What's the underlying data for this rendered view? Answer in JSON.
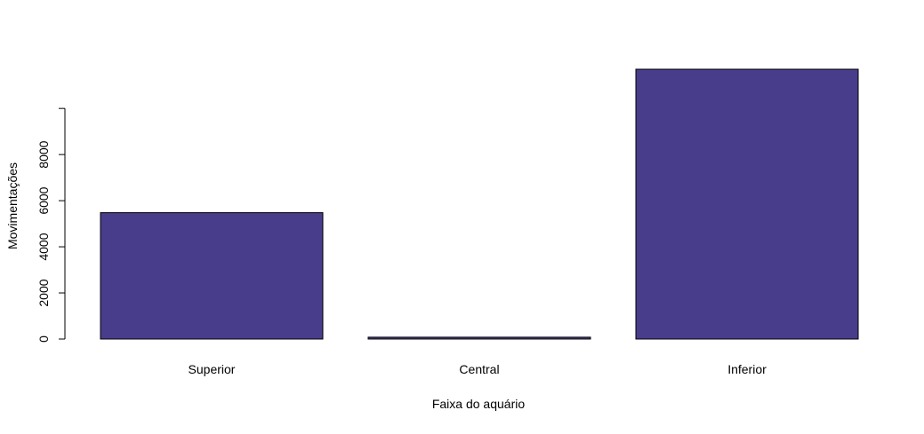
{
  "chart_data": {
    "type": "bar",
    "title": "",
    "categories": [
      "Superior",
      "Central",
      "Inferior"
    ],
    "values": [
      5480,
      80,
      11700
    ],
    "xlabel": "Faixa do aquário",
    "ylabel": "Movimentações",
    "ylim": [
      0,
      11700
    ],
    "yticks": [
      0,
      2000,
      4000,
      6000,
      8000
    ],
    "ytick_labels": [
      "0",
      "2000",
      "4000",
      "6000",
      "8000"
    ],
    "grid": false,
    "legend": "none",
    "bar_color": "#483D8B",
    "bar_border_color": "#000000"
  }
}
